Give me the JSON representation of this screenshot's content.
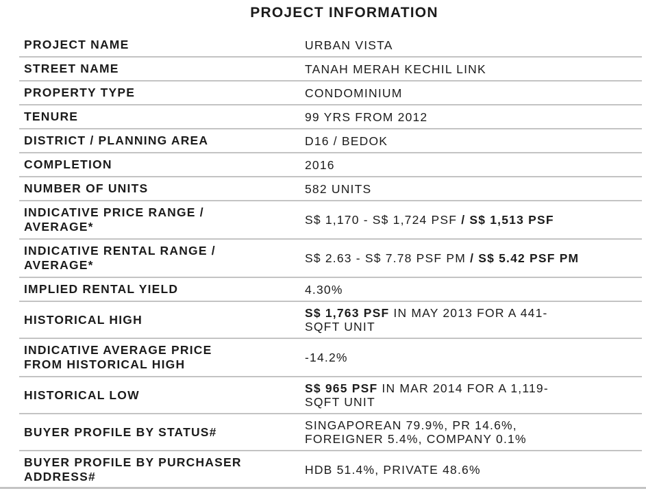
{
  "title": "PROJECT INFORMATION",
  "colors": {
    "text": "#1b1b1b",
    "divider": "#c3c3c3",
    "background": "#ffffff"
  },
  "table": {
    "rows": [
      {
        "id": "project-name",
        "label": "PROJECT NAME",
        "value": [
          {
            "t": "URBAN VISTA"
          }
        ]
      },
      {
        "id": "street-name",
        "label": "STREET NAME",
        "value": [
          {
            "t": "TANAH MERAH KECHIL LINK"
          }
        ]
      },
      {
        "id": "property-type",
        "label": "PROPERTY TYPE",
        "value": [
          {
            "t": "CONDOMINIUM"
          }
        ]
      },
      {
        "id": "tenure",
        "label": "TENURE",
        "value": [
          {
            "t": "99 YRS FROM 2012"
          }
        ]
      },
      {
        "id": "district-planning-area",
        "label": "DISTRICT / PLANNING AREA",
        "value": [
          {
            "t": "D16 / BEDOK"
          }
        ]
      },
      {
        "id": "completion",
        "label": "COMPLETION",
        "value": [
          {
            "t": "2016"
          }
        ]
      },
      {
        "id": "number-of-units",
        "label": "NUMBER OF UNITS",
        "value": [
          {
            "t": "582 UNITS"
          }
        ]
      },
      {
        "id": "indicative-price-range-average",
        "label": "INDICATIVE PRICE RANGE / AVERAGE*",
        "nowrap": true,
        "value": [
          {
            "t": "S$ 1,170 - S$ 1,724 PSF "
          },
          {
            "t": "/ S$ 1,513 PSF",
            "b": true
          }
        ]
      },
      {
        "id": "indicative-rental-range-average",
        "label": "INDICATIVE RENTAL RANGE / AVERAGE*",
        "nowrap": true,
        "value": [
          {
            "t": "S$ 2.63 - S$ 7.78 PSF PM "
          },
          {
            "t": "/ S$ 5.42 PSF PM",
            "b": true
          }
        ]
      },
      {
        "id": "implied-rental-yield",
        "label": "IMPLIED RENTAL YIELD",
        "value": [
          {
            "t": "4.30%"
          }
        ]
      },
      {
        "id": "historical-high",
        "label": "HISTORICAL HIGH",
        "value": [
          {
            "t": "S$ 1,763 PSF",
            "b": true
          },
          {
            "t": " IN MAY 2013 FOR A 441-SQFT UNIT"
          }
        ]
      },
      {
        "id": "indicative-average-price-from-historical-high",
        "label": "INDICATIVE AVERAGE PRICE FROM HISTORICAL HIGH",
        "value": [
          {
            "t": "-14.2%"
          }
        ]
      },
      {
        "id": "historical-low",
        "label": "HISTORICAL LOW",
        "value": [
          {
            "t": "S$ 965 PSF",
            "b": true
          },
          {
            "t": " IN MAR 2014 FOR A 1,119-SQFT UNIT"
          }
        ]
      },
      {
        "id": "buyer-profile-by-status",
        "label": "BUYER PROFILE BY STATUS#",
        "value": [
          {
            "t": "SINGAPOREAN 79.9%, PR 14.6%, FOREIGNER 5.4%, COMPANY 0.1%"
          }
        ]
      },
      {
        "id": "buyer-profile-by-purchaser-address",
        "label": "BUYER PROFILE BY PURCHASER ADDRESS#",
        "value": [
          {
            "t": "HDB 51.4%, PRIVATE 48.6%"
          }
        ]
      }
    ]
  }
}
